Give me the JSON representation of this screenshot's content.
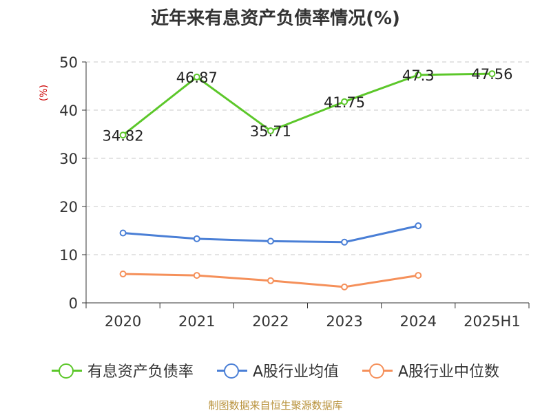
{
  "title": "近年来有息资产负债率情况(%)",
  "source": "制图数据来自恒生聚源数据库",
  "chart_data": {
    "type": "line",
    "y_unit": "(%)",
    "categories": [
      "2020",
      "2021",
      "2022",
      "2023",
      "2024",
      "2025H1"
    ],
    "ylim": [
      0,
      50
    ],
    "yticks": [
      0,
      10,
      20,
      30,
      40,
      50
    ],
    "grid": true,
    "legend_position": "bottom",
    "series": [
      {
        "name": "有息资产负债率",
        "color": "#5cc72a",
        "values": [
          34.82,
          46.87,
          35.71,
          41.75,
          47.3,
          47.56
        ],
        "labels": [
          "34.82",
          "46.87",
          "35.71",
          "41.75",
          "47.3",
          "47.56"
        ]
      },
      {
        "name": "A股行业均值",
        "color": "#4a7fd6",
        "values": [
          14.5,
          13.3,
          12.8,
          12.6,
          16.0,
          null
        ]
      },
      {
        "name": "A股行业中位数",
        "color": "#f5905a",
        "values": [
          6.0,
          5.7,
          4.6,
          3.3,
          5.7,
          null
        ]
      }
    ]
  }
}
